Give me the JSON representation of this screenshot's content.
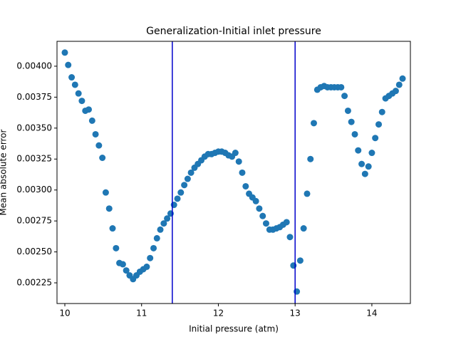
{
  "chart_data": {
    "type": "scatter",
    "title": "Generalization-Initial inlet pressure",
    "x_label": "Initial pressure (atm)",
    "y_label": "Mean absolute error",
    "series": [
      {
        "color": "#1f77b4",
        "x": [
          10.0,
          10.044,
          10.089,
          10.133,
          10.178,
          10.222,
          10.267,
          10.311,
          10.356,
          10.4,
          10.444,
          10.489,
          10.533,
          10.578,
          10.622,
          10.667,
          10.711,
          10.756,
          10.8,
          10.844,
          10.889,
          10.933,
          10.978,
          11.022,
          11.067,
          11.111,
          11.156,
          11.2,
          11.244,
          11.289,
          11.333,
          11.378,
          11.422,
          11.467,
          11.511,
          11.556,
          11.6,
          11.644,
          11.689,
          11.733,
          11.778,
          11.822,
          11.867,
          11.911,
          11.956,
          12.0,
          12.044,
          12.089,
          12.133,
          12.178,
          12.222,
          12.267,
          12.311,
          12.356,
          12.4,
          12.444,
          12.489,
          12.533,
          12.578,
          12.622,
          12.667,
          12.711,
          12.756,
          12.8,
          12.844,
          12.889,
          12.933,
          12.978,
          13.022,
          13.067,
          13.111,
          13.156,
          13.2,
          13.244,
          13.289,
          13.333,
          13.378,
          13.422,
          13.467,
          13.511,
          13.556,
          13.6,
          13.644,
          13.689,
          13.733,
          13.778,
          13.822,
          13.867,
          13.911,
          13.956,
          14.0,
          14.044,
          14.089,
          14.133,
          14.178,
          14.222,
          14.267,
          14.311,
          14.356,
          14.4
        ],
        "values": [
          0.00411,
          0.00401,
          0.00391,
          0.00385,
          0.00378,
          0.00372,
          0.00364,
          0.00365,
          0.00356,
          0.00345,
          0.00336,
          0.00326,
          0.00298,
          0.00285,
          0.00269,
          0.00253,
          0.00241,
          0.0024,
          0.00235,
          0.00231,
          0.00228,
          0.00231,
          0.00234,
          0.00236,
          0.00238,
          0.00245,
          0.00253,
          0.00261,
          0.00268,
          0.00273,
          0.00277,
          0.00281,
          0.00288,
          0.00293,
          0.00298,
          0.00304,
          0.00309,
          0.00314,
          0.00318,
          0.00321,
          0.00324,
          0.00327,
          0.00329,
          0.00329,
          0.0033,
          0.00331,
          0.00331,
          0.0033,
          0.00328,
          0.00327,
          0.0033,
          0.00323,
          0.00314,
          0.00303,
          0.00297,
          0.00294,
          0.00291,
          0.00285,
          0.00279,
          0.00273,
          0.00268,
          0.00268,
          0.00269,
          0.0027,
          0.00272,
          0.00274,
          0.00262,
          0.00239,
          0.00218,
          0.00243,
          0.00269,
          0.00297,
          0.00325,
          0.00354,
          0.00381,
          0.00383,
          0.00384,
          0.00383,
          0.00383,
          0.00383,
          0.00383,
          0.00383,
          0.00376,
          0.00364,
          0.00355,
          0.00345,
          0.00332,
          0.00321,
          0.00313,
          0.00319,
          0.0033,
          0.00342,
          0.00353,
          0.00363,
          0.00374,
          0.00376,
          0.00378,
          0.0038,
          0.00385,
          0.0039
        ]
      }
    ],
    "vlines": [
      {
        "value": 11.4,
        "color": "#0000cc"
      },
      {
        "value": 13.0,
        "color": "#0000cc"
      }
    ],
    "xlim": [
      9.898,
      14.502
    ],
    "ylim": [
      0.002083,
      0.004201
    ],
    "xticks": [
      10,
      11,
      12,
      13,
      14
    ],
    "yticks": [
      0.00225,
      {
        "value": 0.0025,
        "label": "0.00250"
      },
      0.00275,
      {
        "value": 0.003,
        "label": "0.00300"
      },
      0.00325,
      {
        "value": 0.0035,
        "label": "0.00350"
      },
      0.00375,
      {
        "value": 0.004,
        "label": "0.00400"
      }
    ]
  }
}
